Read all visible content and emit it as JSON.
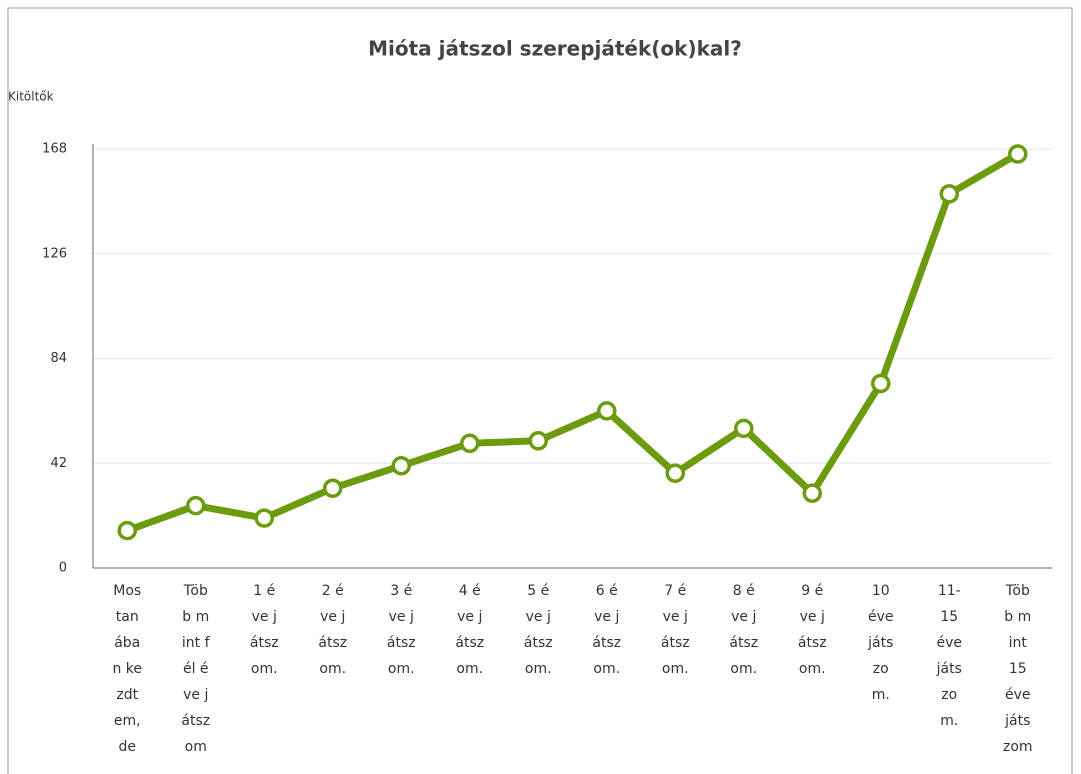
{
  "chart_data": {
    "type": "line",
    "title": "Mióta játszol szerepjáték(ok)kal?",
    "y_label": "Kitöltők",
    "categories": [
      "Mostanában kezdtem, de",
      "Több mint fél éve játszom",
      "1 éve játszom.",
      "2 éve játszom.",
      "3 éve játszom.",
      "4 éve játszom.",
      "5 éve játszom.",
      "6 éve játszom.",
      "7 éve játszom.",
      "8 éve játszom.",
      "9 éve játszom.",
      "10 éve játszom.",
      "11-15 éve játszom.",
      "Több mint 15 éve játszom"
    ],
    "values": [
      15,
      25,
      20,
      32,
      41,
      50,
      51,
      63,
      38,
      56,
      30,
      74,
      150,
      166
    ],
    "color": "#6b9b0e",
    "ylim": [
      0,
      168
    ],
    "yticks": [
      0,
      42,
      84,
      126,
      168
    ],
    "grid": true
  }
}
